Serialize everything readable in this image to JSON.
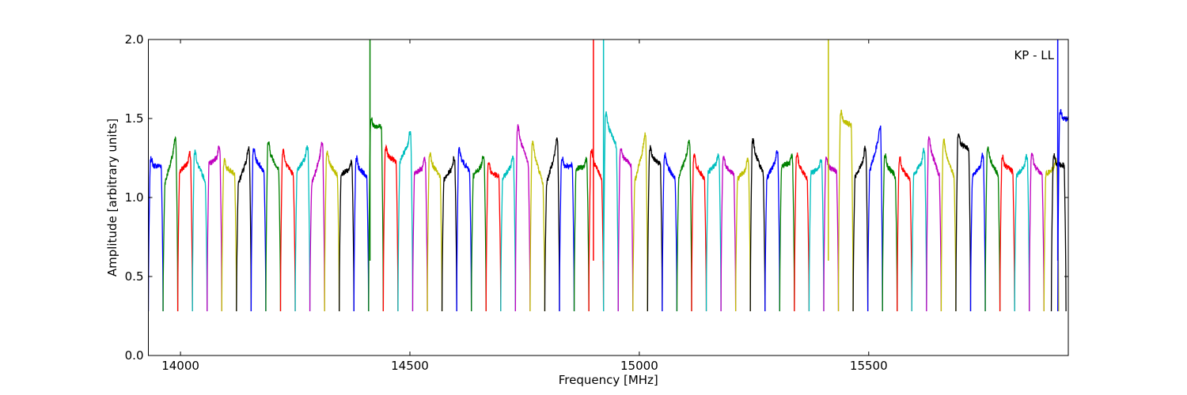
{
  "chart_data": {
    "type": "line",
    "xlabel": "Frequency [MHz]",
    "ylabel": "Amplitude [arbitrary units]",
    "annotation": "KP - LL",
    "annotation_position": "top-right",
    "xlim": [
      13930,
      15935
    ],
    "ylim": [
      0,
      2.0
    ],
    "xticks": [
      14000,
      14500,
      15000,
      15500
    ],
    "xtick_labels": [
      "14000",
      "14500",
      "15000",
      "15500"
    ],
    "yticks": [
      0.0,
      0.5,
      1.0,
      1.5,
      2.0
    ],
    "ytick_labels": [
      "0.0",
      "0.5",
      "1.0",
      "1.5",
      "2.0"
    ],
    "grid": false,
    "color_cycle": [
      "#0000ff",
      "#008000",
      "#ff0000",
      "#00bfbf",
      "#bf00bf",
      "#bfbf00",
      "#000000"
    ],
    "channel_width_mhz": 32,
    "channels": [
      {
        "start": 13930,
        "left": 1.2,
        "right": 1.2,
        "peak": "left",
        "color": "#0000ff"
      },
      {
        "start": 13962,
        "left": 1.05,
        "right": 1.38,
        "peak": "right",
        "color": "#008000"
      },
      {
        "start": 13994,
        "left": 1.15,
        "right": 1.25,
        "peak": "right",
        "color": "#ff0000"
      },
      {
        "start": 14026,
        "left": 1.28,
        "right": 1.08,
        "peak": "left",
        "color": "#00bfbf"
      },
      {
        "start": 14058,
        "left": 1.2,
        "right": 1.28,
        "peak": "right",
        "color": "#bf00bf"
      },
      {
        "start": 14090,
        "left": 1.2,
        "right": 1.15,
        "peak": "left",
        "color": "#bfbf00"
      },
      {
        "start": 14122,
        "left": 1.05,
        "right": 1.32,
        "peak": "right",
        "color": "#000000"
      },
      {
        "start": 14154,
        "left": 1.28,
        "right": 1.15,
        "peak": "left",
        "color": "#0000ff"
      },
      {
        "start": 14186,
        "left": 1.33,
        "right": 1.15,
        "peak": "left",
        "color": "#008000"
      },
      {
        "start": 14218,
        "left": 1.28,
        "right": 1.12,
        "peak": "left",
        "color": "#ff0000"
      },
      {
        "start": 14250,
        "left": 1.15,
        "right": 1.3,
        "peak": "right",
        "color": "#00bfbf"
      },
      {
        "start": 14282,
        "left": 1.05,
        "right": 1.35,
        "peak": "right",
        "color": "#bf00bf"
      },
      {
        "start": 14314,
        "left": 1.26,
        "right": 1.12,
        "peak": "left",
        "color": "#bfbf00"
      },
      {
        "start": 14346,
        "left": 1.15,
        "right": 1.18,
        "peak": "right",
        "color": "#000000"
      },
      {
        "start": 14378,
        "left": 1.22,
        "right": 1.12,
        "peak": "left",
        "color": "#0000ff"
      },
      {
        "start": 14410,
        "left": 1.45,
        "right": 1.45,
        "peak": "left",
        "color": "#008000",
        "spike": {
          "x": 14413,
          "y": 2.0
        }
      },
      {
        "start": 14442,
        "left": 1.28,
        "right": 1.22,
        "peak": "left",
        "color": "#ff0000"
      },
      {
        "start": 14474,
        "left": 1.2,
        "right": 1.4,
        "peak": "right",
        "color": "#00bfbf"
      },
      {
        "start": 14506,
        "left": 1.15,
        "right": 1.2,
        "peak": "right",
        "color": "#bf00bf"
      },
      {
        "start": 14538,
        "left": 1.25,
        "right": 1.12,
        "peak": "left",
        "color": "#bfbf00"
      },
      {
        "start": 14570,
        "left": 1.1,
        "right": 1.22,
        "peak": "right",
        "color": "#000000"
      },
      {
        "start": 14602,
        "left": 1.28,
        "right": 1.15,
        "peak": "left",
        "color": "#0000ff"
      },
      {
        "start": 14634,
        "left": 1.12,
        "right": 1.24,
        "peak": "right",
        "color": "#008000"
      },
      {
        "start": 14666,
        "left": 1.18,
        "right": 1.12,
        "peak": "left",
        "color": "#ff0000"
      },
      {
        "start": 14698,
        "left": 1.1,
        "right": 1.24,
        "peak": "right",
        "color": "#00bfbf"
      },
      {
        "start": 14730,
        "left": 1.45,
        "right": 1.18,
        "peak": "left",
        "color": "#bf00bf"
      },
      {
        "start": 14762,
        "left": 1.36,
        "right": 1.05,
        "peak": "left",
        "color": "#bfbf00"
      },
      {
        "start": 14794,
        "left": 1.05,
        "right": 1.38,
        "peak": "right",
        "color": "#000000"
      },
      {
        "start": 14826,
        "left": 1.2,
        "right": 1.2,
        "peak": "left",
        "color": "#0000ff"
      },
      {
        "start": 14858,
        "left": 1.18,
        "right": 1.2,
        "peak": "right",
        "color": "#008000"
      },
      {
        "start": 14890,
        "left": 1.28,
        "right": 1.1,
        "peak": "left",
        "color": "#ff0000",
        "spike": {
          "x": 14900,
          "y": 2.0
        }
      },
      {
        "start": 14922,
        "left": 1.52,
        "right": 1.3,
        "peak": "left",
        "color": "#00bfbf",
        "spike": {
          "x": 14922,
          "y": 2.0
        }
      },
      {
        "start": 14954,
        "left": 1.28,
        "right": 1.2,
        "peak": "left",
        "color": "#bf00bf"
      },
      {
        "start": 14986,
        "left": 1.05,
        "right": 1.42,
        "peak": "right",
        "color": "#bfbf00"
      },
      {
        "start": 15018,
        "left": 1.28,
        "right": 1.2,
        "peak": "left",
        "color": "#000000"
      },
      {
        "start": 15050,
        "left": 1.25,
        "right": 1.1,
        "peak": "left",
        "color": "#0000ff"
      },
      {
        "start": 15082,
        "left": 1.1,
        "right": 1.36,
        "peak": "right",
        "color": "#008000"
      },
      {
        "start": 15114,
        "left": 1.24,
        "right": 1.1,
        "peak": "left",
        "color": "#ff0000"
      },
      {
        "start": 15146,
        "left": 1.15,
        "right": 1.24,
        "peak": "right",
        "color": "#00bfbf"
      },
      {
        "start": 15178,
        "left": 1.22,
        "right": 1.14,
        "peak": "left",
        "color": "#bf00bf"
      },
      {
        "start": 15210,
        "left": 1.1,
        "right": 1.22,
        "peak": "right",
        "color": "#bfbf00"
      },
      {
        "start": 15242,
        "left": 1.36,
        "right": 1.12,
        "peak": "left",
        "color": "#000000"
      },
      {
        "start": 15274,
        "left": 1.1,
        "right": 1.28,
        "peak": "right",
        "color": "#0000ff"
      },
      {
        "start": 15306,
        "left": 1.2,
        "right": 1.22,
        "peak": "right",
        "color": "#008000"
      },
      {
        "start": 15338,
        "left": 1.25,
        "right": 1.1,
        "peak": "left",
        "color": "#ff0000"
      },
      {
        "start": 15370,
        "left": 1.15,
        "right": 1.2,
        "peak": "right",
        "color": "#00bfbf"
      },
      {
        "start": 15402,
        "left": 1.22,
        "right": 1.15,
        "peak": "left",
        "color": "#bf00bf"
      },
      {
        "start": 15434,
        "left": 1.5,
        "right": 1.45,
        "peak": "left",
        "color": "#bfbf00",
        "spike": {
          "x": 15412,
          "y": 2.0
        }
      },
      {
        "start": 15466,
        "left": 1.1,
        "right": 1.3,
        "peak": "right",
        "color": "#000000"
      },
      {
        "start": 15498,
        "left": 1.12,
        "right": 1.46,
        "peak": "right",
        "color": "#0000ff"
      },
      {
        "start": 15530,
        "left": 1.24,
        "right": 1.12,
        "peak": "left",
        "color": "#008000"
      },
      {
        "start": 15562,
        "left": 1.22,
        "right": 1.1,
        "peak": "left",
        "color": "#ff0000"
      },
      {
        "start": 15594,
        "left": 1.12,
        "right": 1.28,
        "peak": "right",
        "color": "#00bfbf"
      },
      {
        "start": 15626,
        "left": 1.38,
        "right": 1.1,
        "peak": "left",
        "color": "#bf00bf"
      },
      {
        "start": 15658,
        "left": 1.36,
        "right": 1.1,
        "peak": "left",
        "color": "#bfbf00"
      },
      {
        "start": 15690,
        "left": 1.36,
        "right": 1.3,
        "peak": "left",
        "color": "#000000"
      },
      {
        "start": 15722,
        "left": 1.12,
        "right": 1.24,
        "peak": "right",
        "color": "#0000ff"
      },
      {
        "start": 15754,
        "left": 1.3,
        "right": 1.12,
        "peak": "left",
        "color": "#008000"
      },
      {
        "start": 15786,
        "left": 1.22,
        "right": 1.16,
        "peak": "left",
        "color": "#ff0000"
      },
      {
        "start": 15818,
        "left": 1.12,
        "right": 1.24,
        "peak": "right",
        "color": "#00bfbf"
      },
      {
        "start": 15850,
        "left": 1.25,
        "right": 1.12,
        "peak": "left",
        "color": "#bf00bf"
      },
      {
        "start": 15882,
        "left": 1.14,
        "right": 1.2,
        "peak": "right",
        "color": "#bfbf00"
      },
      {
        "start": 15898,
        "left": 1.22,
        "right": 1.2,
        "peak": "left",
        "color": "#000000"
      },
      {
        "start": 15912,
        "left": 1.5,
        "right": 1.5,
        "peak": "left",
        "color": "#0000ff",
        "spike": {
          "x": 15912,
          "y": 2.0
        }
      }
    ]
  }
}
